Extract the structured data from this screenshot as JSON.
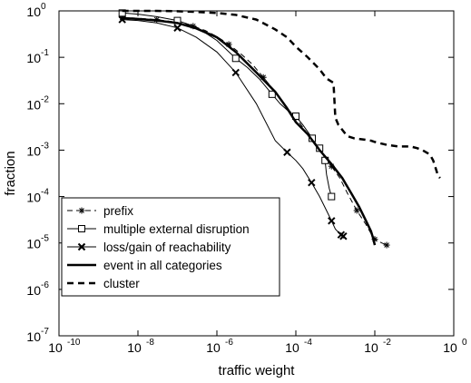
{
  "chart_data": {
    "type": "line",
    "xlabel": "traffic weight",
    "ylabel": "fraction",
    "x_scale": "log",
    "y_scale": "log",
    "xlim": [
      1e-10,
      1
    ],
    "ylim": [
      1e-07,
      1
    ],
    "x_tick_exponents": [
      -10,
      -8,
      -6,
      -4,
      -2,
      0
    ],
    "y_tick_exponents": [
      0,
      -1,
      -2,
      -3,
      -4,
      -5,
      -6,
      -7
    ],
    "grid": false,
    "legend_position": "bottom-left",
    "series": [
      {
        "name": "prefix",
        "style": "dashed-star",
        "x": [
          4e-09,
          8e-09,
          1.5e-08,
          3e-08,
          6e-08,
          1.2e-07,
          2.5e-07,
          5e-07,
          1e-06,
          2e-06,
          4e-06,
          8e-06,
          1.5e-05,
          3e-05,
          6e-05,
          0.0001,
          0.0002,
          0.0004,
          0.0008,
          0.0013,
          0.002,
          0.0035,
          0.006,
          0.008,
          0.01,
          0.015,
          0.02
        ],
        "y": [
          0.72,
          0.7,
          0.68,
          0.65,
          0.6,
          0.55,
          0.47,
          0.38,
          0.28,
          0.19,
          0.12,
          0.07,
          0.037,
          0.018,
          0.008,
          0.005,
          0.0022,
          0.001,
          0.00045,
          0.00025,
          0.00012,
          5e-05,
          2.5e-05,
          1.6e-05,
          1.2e-05,
          1e-05,
          9e-06
        ]
      },
      {
        "name": "multiple external disruption",
        "style": "solid-square",
        "x": [
          4e-09,
          1e-08,
          3e-08,
          1e-07,
          3e-07,
          1e-06,
          3e-06,
          6e-06,
          1.2e-05,
          2.5e-05,
          4e-05,
          7e-05,
          0.0001,
          0.00015,
          0.0002,
          0.00026,
          0.0003,
          0.00035,
          0.0004,
          0.00045,
          0.0005,
          0.00055,
          0.0006,
          0.0007,
          0.0008
        ],
        "y": [
          0.9,
          0.85,
          0.75,
          0.62,
          0.45,
          0.23,
          0.095,
          0.06,
          0.034,
          0.016,
          0.01,
          0.0065,
          0.0054,
          0.0035,
          0.0025,
          0.0018,
          0.0015,
          0.0012,
          0.0011,
          0.0009,
          0.00079,
          0.0006,
          0.0003,
          0.00015,
          0.0001
        ]
      },
      {
        "name": "loss/gain of reachability",
        "style": "solid-x",
        "x": [
          4e-09,
          1e-08,
          3e-08,
          1e-07,
          3e-07,
          1e-06,
          3e-06,
          1e-05,
          3e-05,
          6e-05,
          0.0001,
          0.00015,
          0.00025,
          0.0004,
          0.0006,
          0.0008,
          0.001,
          0.0012,
          0.0014,
          0.0016
        ],
        "y": [
          0.65,
          0.62,
          0.55,
          0.43,
          0.27,
          0.13,
          0.047,
          0.01,
          0.0016,
          0.0009,
          0.0006,
          0.0004,
          0.0002,
          0.0001,
          5e-05,
          3e-05,
          2e-05,
          1.7e-05,
          1.5e-05,
          1.4e-05
        ]
      },
      {
        "name": "event in all categories",
        "style": "thick-solid",
        "x": [
          4e-09,
          1e-08,
          3e-08,
          1e-07,
          3e-07,
          1e-06,
          3e-06,
          1e-05,
          3e-05,
          6e-05,
          0.0001,
          0.0002,
          0.0004,
          0.0008,
          0.0015,
          0.0025,
          0.004,
          0.006,
          0.008,
          0.009,
          0.01
        ],
        "y": [
          0.7,
          0.67,
          0.62,
          0.55,
          0.42,
          0.27,
          0.13,
          0.047,
          0.018,
          0.008,
          0.004,
          0.0022,
          0.001,
          0.0005,
          0.00025,
          0.00012,
          6e-05,
          3e-05,
          1.8e-05,
          1.3e-05,
          9e-06
        ]
      },
      {
        "name": "cluster",
        "style": "thick-dashed",
        "x": [
          4e-09,
          1e-08,
          3e-08,
          1e-07,
          3e-07,
          1e-06,
          3e-06,
          1e-05,
          3e-05,
          6e-05,
          0.0001,
          0.0002,
          0.0004,
          0.0006,
          0.0008,
          0.0009,
          0.001,
          0.0012,
          0.002,
          0.003,
          0.005,
          0.008,
          0.01,
          0.02,
          0.04,
          0.08,
          0.12,
          0.16,
          0.2,
          0.25,
          0.3,
          0.35,
          0.4,
          0.45
        ],
        "y": [
          1,
          1,
          1,
          0.98,
          0.95,
          0.9,
          0.82,
          0.65,
          0.4,
          0.27,
          0.17,
          0.1,
          0.055,
          0.035,
          0.03,
          0.028,
          0.005,
          0.0035,
          0.002,
          0.0018,
          0.0017,
          0.0016,
          0.0015,
          0.0013,
          0.0012,
          0.0012,
          0.0011,
          0.001,
          0.0009,
          0.0008,
          0.0006,
          0.0004,
          0.00028,
          0.00025
        ]
      }
    ]
  }
}
